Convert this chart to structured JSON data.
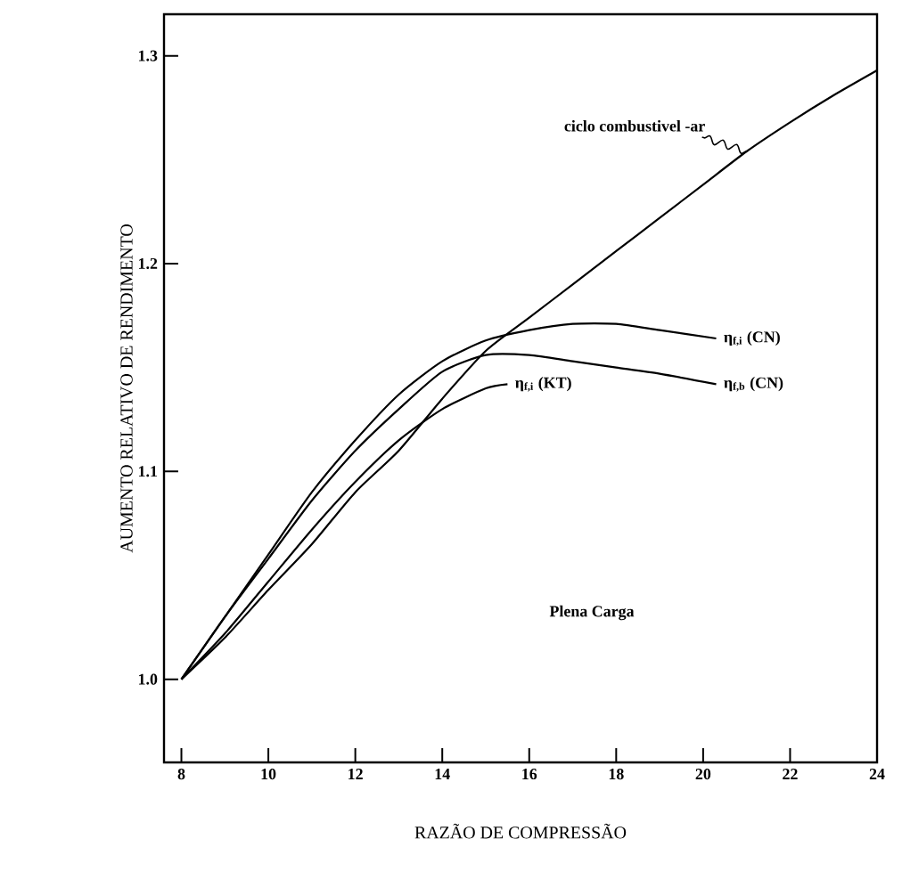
{
  "chart_data": {
    "type": "line",
    "xlabel": "RAZÃO DE COMPRESSÃO",
    "ylabel": "AUMENTO RELATIVO DE RENDIMENTO",
    "xlim": [
      7.6,
      24
    ],
    "ylim": [
      0.96,
      1.32
    ],
    "xticks": [
      8,
      10,
      12,
      14,
      16,
      18,
      20,
      22,
      24
    ],
    "yticks": [
      {
        "value": 1.0,
        "label": "1.0"
      },
      {
        "value": 1.1,
        "label": "1.1"
      },
      {
        "value": 1.2,
        "label": "1.2"
      },
      {
        "value": 1.3,
        "label": "1.3"
      }
    ],
    "annotations": [
      "Plena Carga"
    ],
    "series": [
      {
        "name": "ciclo combustivel -ar",
        "color": "#000000",
        "x": [
          8,
          9,
          10,
          11,
          12,
          13,
          14,
          15,
          16,
          17,
          18,
          19,
          20,
          21,
          22,
          23,
          24
        ],
        "values": [
          1.0,
          1.02,
          1.043,
          1.065,
          1.09,
          1.11,
          1.135,
          1.158,
          1.174,
          1.19,
          1.206,
          1.222,
          1.238,
          1.254,
          1.268,
          1.281,
          1.293
        ]
      },
      {
        "name": "η$_{f,i}$ (CN)",
        "color": "#000000",
        "x": [
          8,
          9,
          10,
          11,
          12,
          13,
          14,
          15,
          16,
          17,
          18,
          19,
          20.3
        ],
        "values": [
          1.0,
          1.03,
          1.06,
          1.09,
          1.115,
          1.137,
          1.153,
          1.163,
          1.168,
          1.171,
          1.171,
          1.168,
          1.164
        ]
      },
      {
        "name": "η$_{f,b}$ (CN)",
        "color": "#000000",
        "x": [
          8,
          9,
          10,
          11,
          12,
          13,
          14,
          15,
          16,
          17,
          18,
          19,
          20.3
        ],
        "values": [
          1.0,
          1.03,
          1.058,
          1.086,
          1.11,
          1.13,
          1.148,
          1.156,
          1.156,
          1.153,
          1.15,
          1.147,
          1.142
        ]
      },
      {
        "name": "η$_{f,i}$ (KT)",
        "color": "#000000",
        "x": [
          8,
          9,
          10,
          11,
          12,
          13,
          14,
          15,
          15.5
        ],
        "values": [
          1.0,
          1.022,
          1.047,
          1.072,
          1.095,
          1.115,
          1.13,
          1.14,
          1.142
        ]
      }
    ]
  }
}
